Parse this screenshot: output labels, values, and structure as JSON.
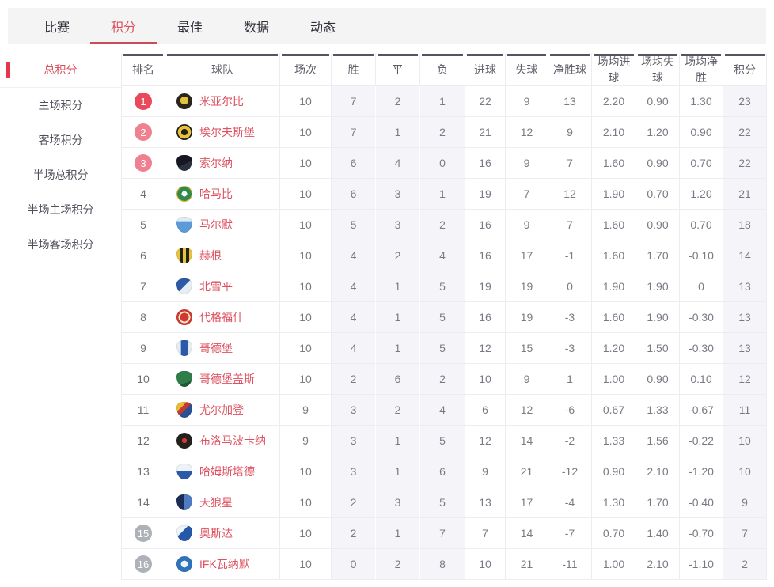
{
  "nav": {
    "tabs": [
      {
        "label": "比赛",
        "active": false
      },
      {
        "label": "积分",
        "active": true
      },
      {
        "label": "最佳",
        "active": false
      },
      {
        "label": "数据",
        "active": false
      },
      {
        "label": "动态",
        "active": false
      }
    ]
  },
  "sidebar": {
    "items": [
      {
        "label": "总积分",
        "active": true
      },
      {
        "label": "主场积分",
        "active": false
      },
      {
        "label": "客场积分",
        "active": false
      },
      {
        "label": "半场总积分",
        "active": false
      },
      {
        "label": "半场主场积分",
        "active": false
      },
      {
        "label": "半场客场积分",
        "active": false
      }
    ]
  },
  "colors": {
    "accent_red": "#e5374b",
    "active_tab_red": "#d9515f",
    "badge_top1": "#e9495b",
    "badge_top3": "#ee8090",
    "badge_relegation": "#aeb1b8",
    "team_name_red": "#de5260",
    "header_dark_bar": "#55555f",
    "tint_column_bg": "#f5f5f9",
    "nav_bar_bg": "#f4f4f5"
  },
  "table": {
    "headers": [
      "排名",
      "球队",
      "场次",
      "胜",
      "平",
      "负",
      "进球",
      "失球",
      "净胜球",
      "场均进球",
      "场均失球",
      "场均净胜",
      "积分"
    ],
    "rows": [
      {
        "rank": "1",
        "badge": "solid",
        "team": "米亚尔比",
        "logo": "radial-gradient(circle at 50% 45%, #e6c23a 0 34%, #2a261c 35%)",
        "shape": "circle",
        "played": "10",
        "win": "7",
        "draw": "2",
        "loss": "1",
        "gf": "22",
        "ga": "9",
        "gd": "13",
        "avg_gf": "2.20",
        "avg_ga": "0.90",
        "avg_gd": "1.30",
        "pts": "23"
      },
      {
        "rank": "2",
        "badge": "pink",
        "team": "埃尔夫斯堡",
        "logo": "radial-gradient(circle at 50% 50%, #23201a 0 28%, #e6c23a 29% 58%, #23201a 59%)",
        "shape": "circle",
        "played": "10",
        "win": "7",
        "draw": "1",
        "loss": "2",
        "gf": "21",
        "ga": "12",
        "gd": "9",
        "avg_gf": "2.10",
        "avg_ga": "1.20",
        "avg_gd": "0.90",
        "pts": "22"
      },
      {
        "rank": "3",
        "badge": "pink",
        "team": "索尔纳",
        "logo": "linear-gradient(155deg, #171721 0 55%, #2c3140 56%)",
        "shape": "shield",
        "played": "10",
        "win": "6",
        "draw": "4",
        "loss": "0",
        "gf": "16",
        "ga": "9",
        "gd": "7",
        "avg_gf": "1.60",
        "avg_ga": "0.90",
        "avg_gd": "0.70",
        "pts": "22"
      },
      {
        "rank": "4",
        "badge": "plain",
        "team": "哈马比",
        "logo": "radial-gradient(circle at 50% 50%, #f5f9f2 0 24%, #2f8a50 25% 62%, #e2bc35 63%)",
        "shape": "circle",
        "played": "10",
        "win": "6",
        "draw": "3",
        "loss": "1",
        "gf": "19",
        "ga": "7",
        "gd": "12",
        "avg_gf": "1.90",
        "avg_ga": "0.70",
        "avg_gd": "1.20",
        "pts": "21"
      },
      {
        "rank": "5",
        "badge": "plain",
        "team": "马尔默",
        "logo": "linear-gradient(180deg, #dcebf8 0 28%, #5d9bd8 29%)",
        "shape": "shield",
        "played": "10",
        "win": "5",
        "draw": "3",
        "loss": "2",
        "gf": "16",
        "ga": "9",
        "gd": "7",
        "avg_gf": "1.60",
        "avg_ga": "0.90",
        "avg_gd": "0.70",
        "pts": "18"
      },
      {
        "rank": "6",
        "badge": "plain",
        "team": "赫根",
        "logo": "repeating-linear-gradient(90deg, #e7c33a 0 4px, #23211b 4px 8px)",
        "shape": "shield",
        "played": "10",
        "win": "4",
        "draw": "2",
        "loss": "4",
        "gf": "16",
        "ga": "17",
        "gd": "-1",
        "avg_gf": "1.60",
        "avg_ga": "1.70",
        "avg_gd": "-0.10",
        "pts": "14"
      },
      {
        "rank": "7",
        "badge": "plain",
        "team": "北雪平",
        "logo": "linear-gradient(135deg, #2a5aa8 0 48%, #e8edf4 49%)",
        "shape": "shield",
        "played": "10",
        "win": "4",
        "draw": "1",
        "loss": "5",
        "gf": "19",
        "ga": "19",
        "gd": "0",
        "avg_gf": "1.90",
        "avg_ga": "1.90",
        "avg_gd": "0",
        "pts": "13"
      },
      {
        "rank": "8",
        "badge": "plain",
        "team": "代格福什",
        "logo": "radial-gradient(circle at 50% 50%, #ce3a30 0 38%, #f3e6cf 39% 52%, #ce3a30 53%)",
        "shape": "circle",
        "played": "10",
        "win": "4",
        "draw": "1",
        "loss": "5",
        "gf": "16",
        "ga": "19",
        "gd": "-3",
        "avg_gf": "1.60",
        "avg_ga": "1.90",
        "avg_gd": "-0.30",
        "pts": "13"
      },
      {
        "rank": "9",
        "badge": "plain",
        "team": "哥德堡",
        "logo": "linear-gradient(90deg, #e8edf4 0 28%, #2a5aa8 29% 70%, #e8edf4 71%)",
        "shape": "shield",
        "played": "10",
        "win": "4",
        "draw": "1",
        "loss": "5",
        "gf": "12",
        "ga": "15",
        "gd": "-3",
        "avg_gf": "1.20",
        "avg_ga": "1.50",
        "avg_gd": "-0.30",
        "pts": "13"
      },
      {
        "rank": "10",
        "badge": "plain",
        "team": "哥德堡盖斯",
        "logo": "linear-gradient(160deg, #2f7d48 0 70%, #1c5a33 71%)",
        "shape": "shield",
        "played": "10",
        "win": "2",
        "draw": "6",
        "loss": "2",
        "gf": "10",
        "ga": "9",
        "gd": "1",
        "avg_gf": "1.00",
        "avg_ga": "0.90",
        "avg_gd": "0.10",
        "pts": "12"
      },
      {
        "rank": "11",
        "badge": "plain",
        "team": "尤尔加登",
        "logo": "linear-gradient(135deg, #e8bd32 0 32%, #c23a32 33% 52%, #2a4f94 53%)",
        "shape": "shield",
        "played": "9",
        "win": "3",
        "draw": "2",
        "loss": "4",
        "gf": "6",
        "ga": "12",
        "gd": "-6",
        "avg_gf": "0.67",
        "avg_ga": "1.33",
        "avg_gd": "-0.67",
        "pts": "11"
      },
      {
        "rank": "12",
        "badge": "plain",
        "team": "布洛马波卡纳",
        "logo": "radial-gradient(circle at 50% 50%, #d23a32 0 22%, #23211e 23% 70%, #e8bd32 71%)",
        "shape": "circle",
        "played": "9",
        "win": "3",
        "draw": "1",
        "loss": "5",
        "gf": "12",
        "ga": "14",
        "gd": "-2",
        "avg_gf": "1.33",
        "avg_ga": "1.56",
        "avg_gd": "-0.22",
        "pts": "10"
      },
      {
        "rank": "13",
        "badge": "plain",
        "team": "哈姆斯塔德",
        "logo": "linear-gradient(180deg, #eef3f8 0 45%, #2a5aa8 46%)",
        "shape": "shield",
        "played": "10",
        "win": "3",
        "draw": "1",
        "loss": "6",
        "gf": "9",
        "ga": "21",
        "gd": "-12",
        "avg_gf": "0.90",
        "avg_ga": "2.10",
        "avg_gd": "-1.20",
        "pts": "10"
      },
      {
        "rank": "14",
        "badge": "plain",
        "team": "天狼星",
        "logo": "linear-gradient(90deg, #1c2c55 0 45%, #4e7cc2 46%)",
        "shape": "shield",
        "played": "10",
        "win": "2",
        "draw": "3",
        "loss": "5",
        "gf": "13",
        "ga": "17",
        "gd": "-4",
        "avg_gf": "1.30",
        "avg_ga": "1.70",
        "avg_gd": "-0.40",
        "pts": "9"
      },
      {
        "rank": "15",
        "badge": "gray",
        "team": "奥斯达",
        "logo": "linear-gradient(135deg, #eef3f8 0 38%, #2458a8 39%)",
        "shape": "shield",
        "played": "10",
        "win": "2",
        "draw": "1",
        "loss": "7",
        "gf": "7",
        "ga": "14",
        "gd": "-7",
        "avg_gf": "0.70",
        "avg_ga": "1.40",
        "avg_gd": "-0.70",
        "pts": "7"
      },
      {
        "rank": "16",
        "badge": "gray",
        "team": "IFK瓦纳默",
        "logo": "radial-gradient(circle at 50% 50%, #eef3f8 0 30%, #2f74ba 31%)",
        "shape": "circle",
        "played": "10",
        "win": "0",
        "draw": "2",
        "loss": "8",
        "gf": "10",
        "ga": "21",
        "gd": "-11",
        "avg_gf": "1.00",
        "avg_ga": "2.10",
        "avg_gd": "-1.10",
        "pts": "2"
      }
    ]
  }
}
